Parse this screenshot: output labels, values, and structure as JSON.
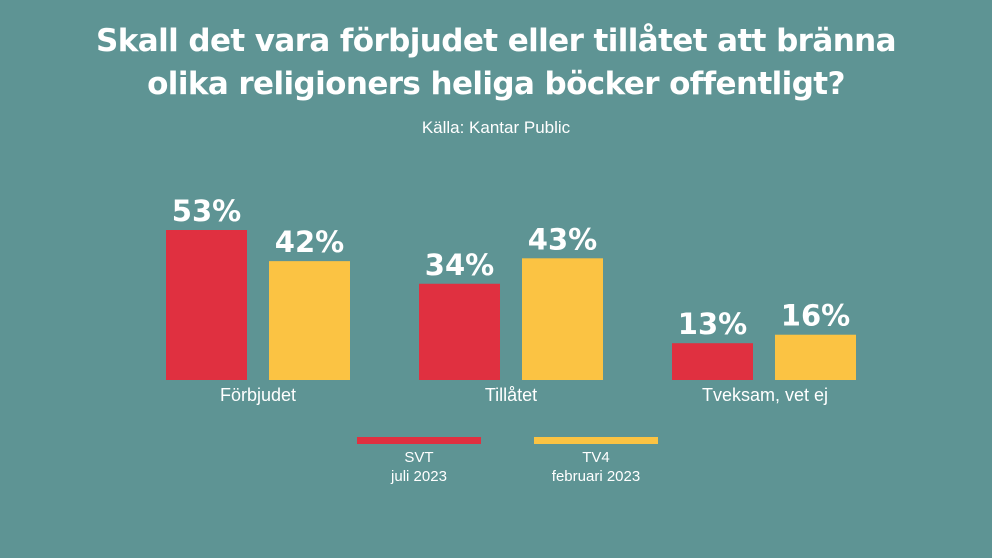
{
  "header": {
    "title_line1": "Skall det vara förbjudet eller tillåtet att bränna",
    "title_line2": "olika religioners heliga böcker offentligt?",
    "source": "Källa: Kantar Public"
  },
  "legend": [
    {
      "name": "SVT",
      "sub": "juli 2023",
      "color": "#e03040"
    },
    {
      "name": "TV4",
      "sub": "februari 2023",
      "color": "#fbc343"
    }
  ],
  "chart_data": {
    "type": "bar",
    "title": "Skall det vara förbjudet eller tillåtet att bränna olika religioners heliga böcker offentligt?",
    "categories": [
      "Förbjudet",
      "Tillåtet",
      "Tveksam, vet ej"
    ],
    "series": [
      {
        "name": "SVT juli 2023",
        "values": [
          53,
          34,
          13
        ],
        "labels": [
          "53%",
          "34%",
          "13%"
        ],
        "color": "#e03040"
      },
      {
        "name": "TV4 februari 2023",
        "values": [
          42,
          43,
          16
        ],
        "labels": [
          "42%",
          "43%",
          "16%"
        ],
        "color": "#fbc343"
      }
    ],
    "ylim": [
      0,
      60
    ],
    "grid": false,
    "legend_position": "bottom"
  }
}
